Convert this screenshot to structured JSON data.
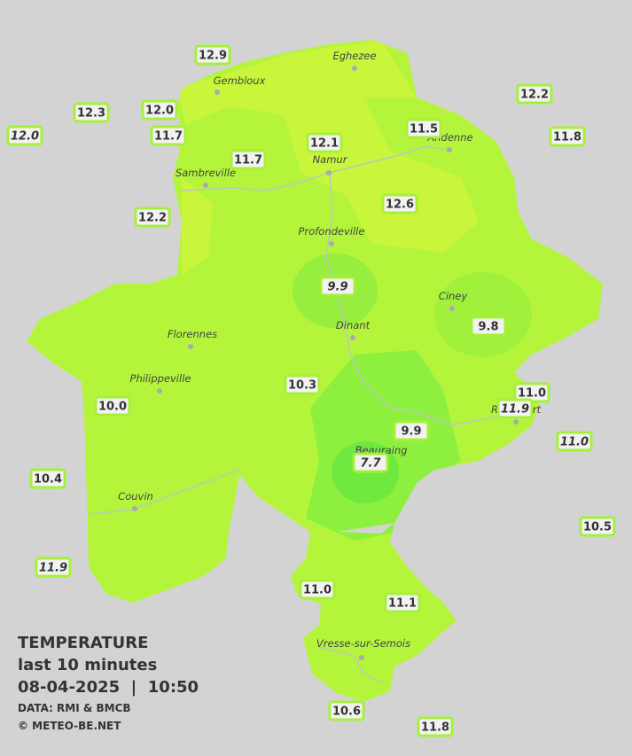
{
  "legend": {
    "title": "TEMPERATURE",
    "period": "last 10 minutes",
    "datetime": "08-04-2025  |  10:50",
    "source": "DATA: RMI & BMCB",
    "copyright": "© METEO-BE.NET"
  },
  "cities": [
    "Eghezee",
    "Gembloux",
    "Andenne",
    "Namur",
    "Sambreville",
    "Profondeville",
    "Ciney",
    "Dinant",
    "Florennes",
    "Philippeville",
    "Rochefort",
    "Beauraing",
    "Couvin",
    "Vresse-sur-Semois"
  ],
  "stations": [
    {
      "label": "12.9",
      "italic": false
    },
    {
      "label": "12.3",
      "italic": false
    },
    {
      "label": "12.0",
      "italic": false
    },
    {
      "label": "12.0",
      "italic": true
    },
    {
      "label": "11.7",
      "italic": false
    },
    {
      "label": "11.7",
      "italic": false
    },
    {
      "label": "12.1",
      "italic": false
    },
    {
      "label": "11.5",
      "italic": false
    },
    {
      "label": "12.2",
      "italic": false
    },
    {
      "label": "11.8",
      "italic": false
    },
    {
      "label": "12.6",
      "italic": false
    },
    {
      "label": "12.2",
      "italic": false
    },
    {
      "label": "9.9",
      "italic": true
    },
    {
      "label": "9.8",
      "italic": false
    },
    {
      "label": "10.3",
      "italic": false
    },
    {
      "label": "11.0",
      "italic": false
    },
    {
      "label": "11.9",
      "italic": true
    },
    {
      "label": "10.0",
      "italic": false
    },
    {
      "label": "9.9",
      "italic": false
    },
    {
      "label": "11.0",
      "italic": true
    },
    {
      "label": "7.7",
      "italic": true
    },
    {
      "label": "10.4",
      "italic": false
    },
    {
      "label": "10.5",
      "italic": false
    },
    {
      "label": "11.9",
      "italic": true
    },
    {
      "label": "11.0",
      "italic": false
    },
    {
      "label": "11.1",
      "italic": false
    },
    {
      "label": "10.6",
      "italic": false
    },
    {
      "label": "11.8",
      "italic": false
    }
  ]
}
